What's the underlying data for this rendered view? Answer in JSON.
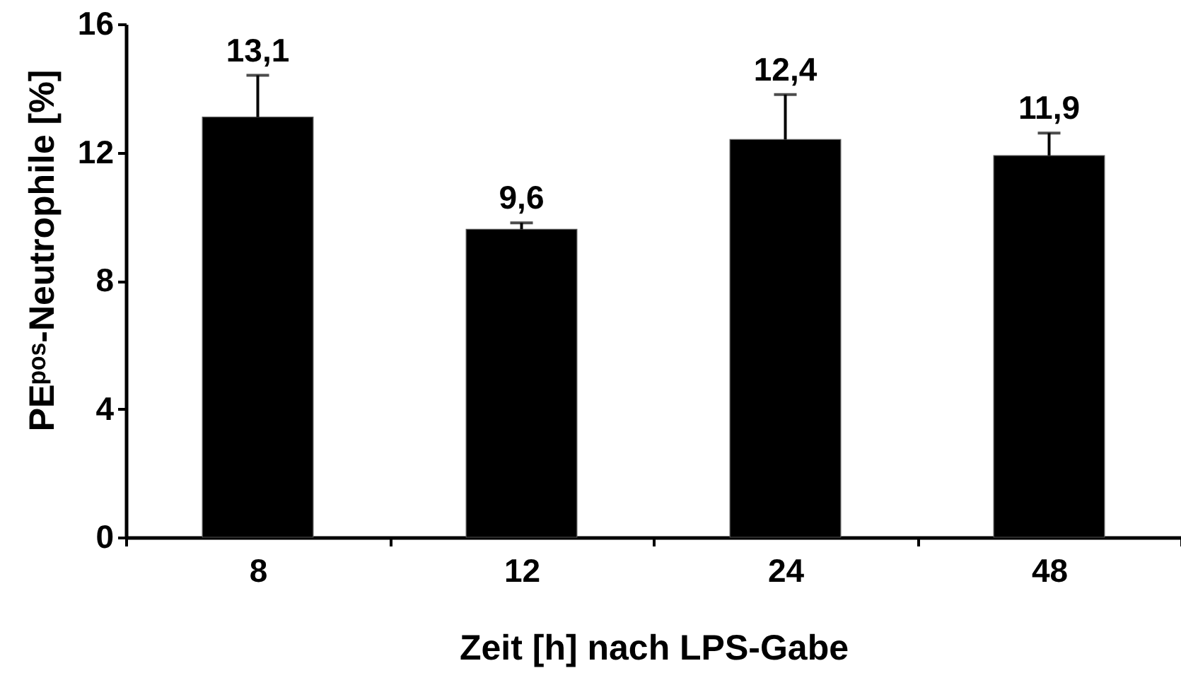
{
  "chart_data": {
    "type": "bar",
    "xlabel": "Zeit [h] nach LPS-Gabe",
    "ylabel": "PEᵖᵒˢ-Neutrophile [%]",
    "categories": [
      "8",
      "12",
      "24",
      "48"
    ],
    "values": [
      13.1,
      9.6,
      12.4,
      11.9
    ],
    "errors": [
      [
        13.1,
        14.4
      ],
      [
        9.6,
        9.8
      ],
      [
        12.4,
        13.8
      ],
      [
        11.9,
        12.6
      ]
    ],
    "value_labels": [
      "13,1",
      "9,6",
      "12,4",
      "11,9"
    ],
    "color": "#000000",
    "ylim": [
      0,
      16
    ],
    "yticks": [
      0,
      4,
      8,
      12,
      16
    ],
    "grid": false
  }
}
